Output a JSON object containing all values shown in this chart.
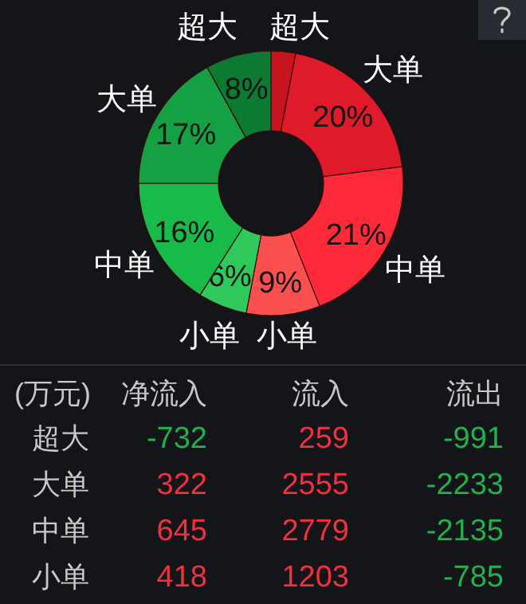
{
  "chart_data": [
    {
      "type": "donut",
      "categories": [
        "超大",
        "大单",
        "中单",
        "小单",
        "小单",
        "中单",
        "大单",
        "超大"
      ],
      "values": [
        3,
        20,
        21,
        9,
        6,
        16,
        17,
        8
      ],
      "value_labels": [
        null,
        "20%",
        "21%",
        "9%",
        "6%",
        "16%",
        "17%",
        "8%"
      ],
      "colors": [
        "#c8141f",
        "#de1a2b",
        "#fe2a3a",
        "#fa5050",
        "#2fc85a",
        "#18bb4a",
        "#14a043",
        "#0c7a33"
      ]
    },
    {
      "type": "other",
      "ylabel": "(万元)",
      "categories": [
        "超大",
        "大单",
        "中单",
        "小单"
      ],
      "data_labels": true,
      "series": [
        {
          "name": "净流入",
          "values": [
            -732,
            322,
            645,
            418
          ],
          "colors": [
            "#22b14c",
            "#f2303f",
            "#f2303f",
            "#f2303f"
          ]
        },
        {
          "name": "流入",
          "values": [
            259,
            2555,
            2779,
            1203
          ],
          "colors": [
            "#f2303f",
            "#f2303f",
            "#f2303f",
            "#f2303f"
          ]
        },
        {
          "name": "流出",
          "values": [
            -991,
            -2233,
            -2135,
            -785
          ],
          "colors": [
            "#22b14c",
            "#22b14c",
            "#22b14c",
            "#22b14c"
          ]
        }
      ]
    }
  ]
}
